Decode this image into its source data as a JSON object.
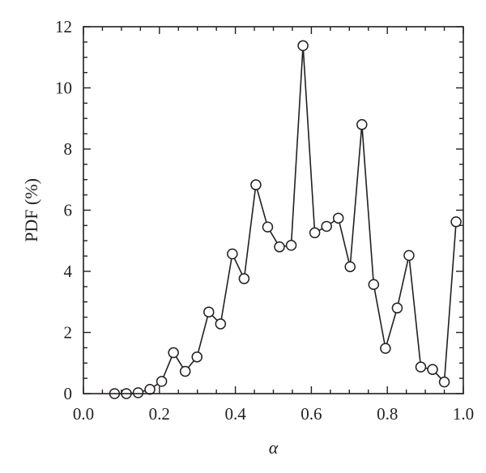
{
  "chart_data": {
    "type": "line",
    "title": "",
    "xlabel": "α",
    "ylabel": "PDF (%)",
    "xlim": [
      0.0,
      1.0
    ],
    "ylim": [
      0,
      12
    ],
    "x_ticks": [
      "0.0",
      "0.2",
      "0.4",
      "0.6",
      "0.8",
      "1.0"
    ],
    "y_ticks": [
      "0",
      "2",
      "4",
      "6",
      "8",
      "10",
      "12"
    ],
    "grid": false,
    "legend": "none",
    "marker": "open-circle",
    "line_color": "#231f20",
    "series": [
      {
        "x": [
          0.082,
          0.113,
          0.144,
          0.175,
          0.206,
          0.237,
          0.268,
          0.299,
          0.33,
          0.361,
          0.392,
          0.423,
          0.454,
          0.485,
          0.516,
          0.547,
          0.578,
          0.609,
          0.64,
          0.671,
          0.702,
          0.733,
          0.764,
          0.795,
          0.826,
          0.857,
          0.888,
          0.919,
          0.95,
          0.981
        ],
        "y": [
          0.0,
          0.0,
          0.03,
          0.14,
          0.4,
          1.34,
          0.73,
          1.2,
          2.67,
          2.28,
          4.57,
          3.76,
          6.83,
          5.45,
          4.8,
          4.85,
          11.38,
          5.26,
          5.47,
          5.74,
          4.15,
          8.8,
          3.57,
          1.48,
          2.8,
          4.52,
          0.87,
          0.79,
          0.38,
          5.62
        ]
      }
    ]
  }
}
